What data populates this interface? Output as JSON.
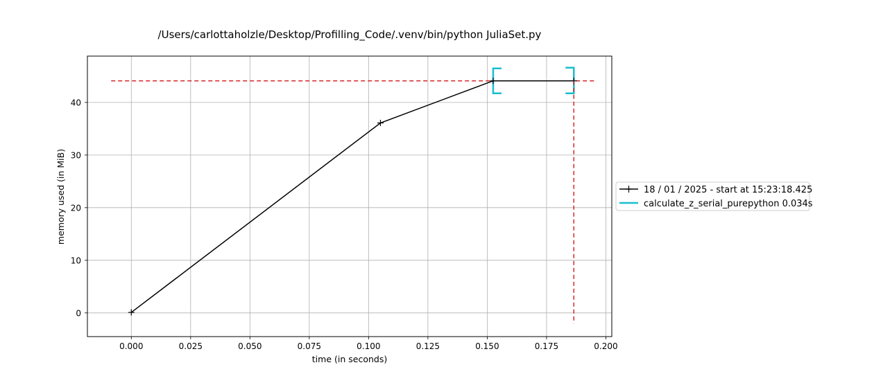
{
  "chart_data": {
    "type": "line",
    "title": "/Users/carlottaholzle/Desktop/Profilling_Code/.venv/bin/python JuliaSet.py",
    "xlabel": "time (in seconds)",
    "ylabel": "memory used (in MiB)",
    "xlim": [
      -0.0185,
      0.2025
    ],
    "ylim": [
      -4.5,
      48.8
    ],
    "xticks": [
      0.0,
      0.025,
      0.05,
      0.075,
      0.1,
      0.125,
      0.15,
      0.175,
      0.2
    ],
    "xtick_labels": [
      "0.000",
      "0.025",
      "0.050",
      "0.075",
      "0.100",
      "0.125",
      "0.150",
      "0.175",
      "0.200"
    ],
    "yticks": [
      0,
      10,
      20,
      30,
      40
    ],
    "ytick_labels": [
      "0",
      "10",
      "20",
      "30",
      "40"
    ],
    "grid": true,
    "legend_position": "right, outside plot",
    "series": [
      {
        "name": "18 / 01 / 2025 - start at 15:23:18.425",
        "color": "#000000",
        "marker": "+",
        "x": [
          0.0,
          0.105,
          0.1525,
          0.1865
        ],
        "y": [
          0.1,
          36.1,
          44.1,
          44.1
        ]
      }
    ],
    "function_bracket": {
      "name": "calculate_z_serial_purepython 0.034s",
      "color": "#17becf",
      "x_start": 0.1525,
      "x_end": 0.1865,
      "y": 44.1
    },
    "max_memory_line": {
      "y": 44.1,
      "x_from": -0.0085,
      "x_to": 0.195,
      "color": "#d62728"
    },
    "max_time_line": {
      "x": 0.1865,
      "y_from": -2.0,
      "y_to": 44.1,
      "color": "#d62728"
    }
  }
}
